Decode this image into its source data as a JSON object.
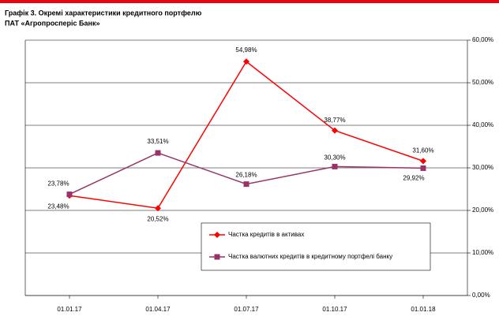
{
  "chart_data": {
    "type": "line",
    "title": "Графік 3. Окремі характеристики кредитного портфелю",
    "subtitle": "ПАТ «Агропросперіс Банк»",
    "categories": [
      "01.01.17",
      "01.04.17",
      "01.07.17",
      "01.10.17",
      "01.01.18"
    ],
    "series": [
      {
        "name": "Частка кредитів в активах",
        "color": "#ff0000",
        "marker": "diamond",
        "values": [
          23.48,
          20.52,
          54.98,
          38.77,
          31.6
        ],
        "value_labels": [
          "23,48%",
          "20,52%",
          "54,98%",
          "38,77%",
          "31,60%"
        ]
      },
      {
        "name": "Частка валютних кредитів в кредитному портфелі банку",
        "color": "#993366",
        "marker": "square",
        "values": [
          23.78,
          33.51,
          26.18,
          30.3,
          29.92
        ],
        "value_labels": [
          "23,78%",
          "33,51%",
          "26,18%",
          "30,30%",
          "29,92%"
        ]
      }
    ],
    "ylim": [
      0,
      60
    ],
    "yticks": [
      {
        "value": 0,
        "label": "0,00%"
      },
      {
        "value": 10,
        "label": "10,00%"
      },
      {
        "value": 20,
        "label": "20,00%"
      },
      {
        "value": 30,
        "label": "30,00%"
      },
      {
        "value": 40,
        "label": "40,00%"
      },
      {
        "value": 50,
        "label": "50,00%"
      },
      {
        "value": 60,
        "label": "60,00%"
      }
    ],
    "grid": true
  }
}
